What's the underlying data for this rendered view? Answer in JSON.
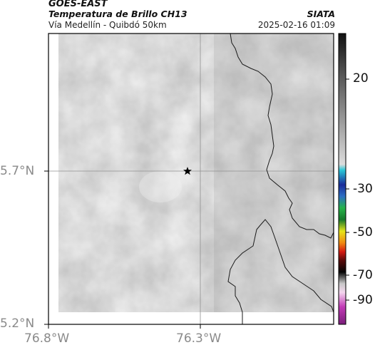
{
  "header": {
    "satellite": "GOES-EAST",
    "product": "Temperatura de Brillo CH13",
    "location": "Vía Medellín - Quibdó 50km",
    "organization": "SIATA",
    "datetime": "2025-02-16 01:09"
  },
  "axes": {
    "lat_ticks": [
      "5.7°N",
      "5.2°N"
    ],
    "lon_ticks": [
      "76.8°W",
      "76.3°W"
    ]
  },
  "colorbar": {
    "labels": [
      "20",
      "-30",
      "-50",
      "-70",
      "-90"
    ]
  },
  "marker": {
    "icon": "star-marker-icon"
  },
  "colors": {
    "frame": "#000000",
    "coastline": "#1a1a1a",
    "gridline": "#909090",
    "tick_text": "#8a8a8a"
  }
}
